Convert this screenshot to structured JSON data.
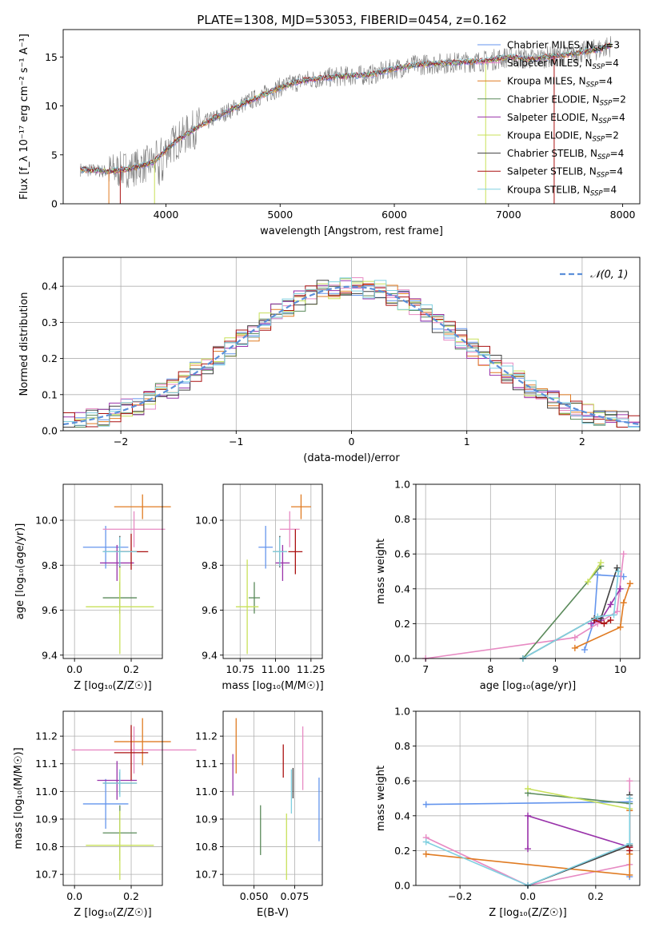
{
  "figure": {
    "title": "PLATE=1308, MJD=53053, FIBERID=0454, z=0.162"
  },
  "palette": {
    "chabrier_miles": "#6495ed",
    "salpeter_miles": "#e78ac3",
    "kroupa_miles": "#e07b22",
    "chabrier_elodie": "#5a8a5a",
    "salpeter_elodie": "#9933aa",
    "kroupa_elodie": "#c8e05a",
    "chabrier_stelib": "#404040",
    "salpeter_stelib": "#aa1111",
    "kroupa_stelib": "#80d0e0",
    "data": "#808080",
    "gaussian": "#5b8fd9"
  },
  "chart_data": [
    {
      "id": "spectrum",
      "type": "line",
      "xlabel": "wavelength [Angstrom, rest frame]",
      "ylabel": "Flux [f_λ 10⁻¹⁷ erg cm⁻² s⁻¹ A⁻¹]",
      "xlim": [
        3100,
        8150
      ],
      "ylim": [
        0,
        17.8
      ],
      "xticks": [
        4000,
        5000,
        6000,
        7000,
        8000
      ],
      "yticks": [
        0,
        5,
        10,
        15
      ],
      "grid": false,
      "legend_position": "top-right",
      "legend": [
        {
          "main": "Chabrier MILES, N",
          "sub": "SSP",
          "tail": "=3"
        },
        {
          "main": "Salpeter MILES, N",
          "sub": "SSP",
          "tail": "=4"
        },
        {
          "main": "Kroupa MILES, N",
          "sub": "SSP",
          "tail": "=4"
        },
        {
          "main": "Chabrier ELODIE, N",
          "sub": "SSP",
          "tail": "=2"
        },
        {
          "main": "Salpeter ELODIE, N",
          "sub": "SSP",
          "tail": "=4"
        },
        {
          "main": "Kroupa ELODIE, N",
          "sub": "SSP",
          "tail": "=2"
        },
        {
          "main": "Chabrier STELIB, N",
          "sub": "SSP",
          "tail": "=4"
        },
        {
          "main": "Salpeter STELIB, N",
          "sub": "SSP",
          "tail": "=4"
        },
        {
          "main": "Kroupa STELIB, N",
          "sub": "SSP",
          "tail": "=4"
        }
      ],
      "continuum": {
        "x": [
          3250,
          3500,
          3700,
          3900,
          4000,
          4100,
          4300,
          4600,
          5000,
          5200,
          5500,
          5800,
          6000,
          6200,
          6500,
          6800,
          7000,
          7200,
          7500,
          7800,
          7900
        ],
        "y": [
          3.5,
          3.3,
          3.6,
          4.3,
          5.5,
          6.5,
          8.0,
          9.8,
          11.9,
          12.6,
          13.0,
          13.2,
          13.8,
          14.2,
          14.4,
          14.6,
          15.0,
          14.8,
          15.2,
          15.8,
          16.2
        ]
      }
    },
    {
      "id": "residuals",
      "type": "histogram",
      "xlabel": "(data-model)/error",
      "ylabel": "Normed distribution",
      "xlim": [
        -2.5,
        2.5
      ],
      "ylim": [
        0,
        0.48
      ],
      "xticks": [
        -2,
        -1,
        0,
        1,
        2
      ],
      "xtick_labels": [
        "−2",
        "−1",
        "0",
        "1",
        "2"
      ],
      "yticks": [
        0.0,
        0.1,
        0.2,
        0.3,
        0.4
      ],
      "grid": true,
      "legend_position": "top-right",
      "legend": [
        "𝒩(0, 1)"
      ],
      "bin_width": 0.1
    },
    {
      "id": "age-vs-Z",
      "type": "errorbar",
      "xlabel": "Z [log₁₀(Z/Z☉)]",
      "ylabel": "age  [log₁₀(age/yr)]",
      "xlim": [
        -0.04,
        0.31
      ],
      "ylim": [
        9.385,
        10.16
      ],
      "xticks": [
        0.0,
        0.2
      ],
      "yticks": [
        9.4,
        9.6,
        9.8,
        10.0
      ],
      "grid": true,
      "points": [
        {
          "model": "chabrier_miles",
          "x": 0.11,
          "xerr": 0.08,
          "y": 9.88,
          "yerr": 0.095
        },
        {
          "model": "salpeter_miles",
          "x": 0.21,
          "xerr": 0.11,
          "y": 9.96,
          "yerr": 0.08
        },
        {
          "model": "kroupa_miles",
          "x": 0.24,
          "xerr": 0.1,
          "y": 10.06,
          "yerr": 0.055
        },
        {
          "model": "chabrier_elodie",
          "x": 0.16,
          "xerr": 0.06,
          "y": 9.655,
          "yerr": 0.07
        },
        {
          "model": "salpeter_elodie",
          "x": 0.15,
          "xerr": 0.06,
          "y": 9.81,
          "yerr": 0.08
        },
        {
          "model": "kroupa_elodie",
          "x": 0.16,
          "xerr": 0.12,
          "y": 9.615,
          "yerr": 0.21
        },
        {
          "model": "chabrier_stelib",
          "x": 0.16,
          "xerr": 0.06,
          "y": 9.86,
          "yerr": 0.07
        },
        {
          "model": "salpeter_stelib",
          "x": 0.2,
          "xerr": 0.06,
          "y": 9.86,
          "yerr": 0.08
        },
        {
          "model": "kroupa_stelib",
          "x": 0.16,
          "xerr": 0.06,
          "y": 9.86,
          "yerr": 0.065
        }
      ]
    },
    {
      "id": "age-vs-mass",
      "type": "errorbar",
      "xlabel": "mass [log₁₀(M/M☉)]",
      "ylabel": "",
      "xlim": [
        10.63,
        11.33
      ],
      "ylim": [
        9.385,
        10.16
      ],
      "xticks": [
        10.75,
        11.0,
        11.25
      ],
      "yticks": [
        9.4,
        9.6,
        9.8,
        10.0
      ],
      "grid": true,
      "points": [
        {
          "model": "chabrier_miles",
          "x": 10.93,
          "xerr": 0.05,
          "y": 9.88,
          "yerr": 0.095
        },
        {
          "model": "salpeter_miles",
          "x": 11.1,
          "xerr": 0.07,
          "y": 9.96,
          "yerr": 0.08
        },
        {
          "model": "kroupa_miles",
          "x": 11.18,
          "xerr": 0.07,
          "y": 10.06,
          "yerr": 0.055
        },
        {
          "model": "chabrier_elodie",
          "x": 10.85,
          "xerr": 0.04,
          "y": 9.655,
          "yerr": 0.07
        },
        {
          "model": "salpeter_elodie",
          "x": 11.05,
          "xerr": 0.05,
          "y": 9.81,
          "yerr": 0.08
        },
        {
          "model": "kroupa_elodie",
          "x": 10.8,
          "xerr": 0.08,
          "y": 9.615,
          "yerr": 0.21
        },
        {
          "model": "chabrier_stelib",
          "x": 11.03,
          "xerr": 0.05,
          "y": 9.86,
          "yerr": 0.07
        },
        {
          "model": "salpeter_stelib",
          "x": 11.14,
          "xerr": 0.05,
          "y": 9.86,
          "yerr": 0.1
        },
        {
          "model": "kroupa_stelib",
          "x": 11.03,
          "xerr": 0.05,
          "y": 9.86,
          "yerr": 0.065
        }
      ]
    },
    {
      "id": "mass-weight-vs-age",
      "type": "line",
      "xlabel": "age  [log₁₀(age/yr)]",
      "ylabel": "mass weight",
      "xlim": [
        6.85,
        10.3
      ],
      "ylim": [
        0,
        1
      ],
      "xticks": [
        7,
        8,
        9,
        10
      ],
      "yticks": [
        0.0,
        0.2,
        0.4,
        0.6,
        0.8,
        1.0
      ],
      "grid": true,
      "series": [
        {
          "model": "chabrier_miles",
          "x": [
            9.45,
            9.6,
            9.65,
            10.05
          ],
          "y": [
            0.05,
            0.22,
            0.48,
            0.47
          ]
        },
        {
          "model": "salpeter_miles",
          "x": [
            7.0,
            9.3,
            9.65,
            9.95,
            10.05
          ],
          "y": [
            0.0,
            0.12,
            0.2,
            0.27,
            0.6
          ]
        },
        {
          "model": "kroupa_miles",
          "x": [
            9.3,
            10.0,
            10.05,
            10.15
          ],
          "y": [
            0.06,
            0.18,
            0.32,
            0.43
          ]
        },
        {
          "model": "chabrier_elodie",
          "x": [
            8.5,
            9.7
          ],
          "y": [
            0.0,
            0.53
          ]
        },
        {
          "model": "salpeter_elodie",
          "x": [
            9.55,
            9.7,
            9.85,
            10.0
          ],
          "y": [
            0.2,
            0.22,
            0.31,
            0.4
          ]
        },
        {
          "model": "kroupa_elodie",
          "x": [
            9.5,
            9.7
          ],
          "y": [
            0.44,
            0.55
          ]
        },
        {
          "model": "chabrier_stelib",
          "x": [
            8.5,
            9.6,
            9.7,
            9.95
          ],
          "y": [
            0.0,
            0.23,
            0.23,
            0.52
          ]
        },
        {
          "model": "salpeter_stelib",
          "x": [
            9.6,
            9.75,
            9.85
          ],
          "y": [
            0.22,
            0.2,
            0.22
          ]
        },
        {
          "model": "kroupa_stelib",
          "x": [
            8.5,
            9.65,
            9.9,
            9.97
          ],
          "y": [
            0.0,
            0.24,
            0.25,
            0.5
          ]
        }
      ]
    },
    {
      "id": "mass-vs-Z",
      "type": "errorbar",
      "xlabel": "Z [log₁₀(Z/Z☉)]",
      "ylabel": "mass [log₁₀(M/M☉)]",
      "xlim": [
        -0.04,
        0.31
      ],
      "ylim": [
        10.66,
        11.29
      ],
      "xticks": [
        0.0,
        0.2
      ],
      "yticks": [
        10.7,
        10.8,
        10.9,
        11.0,
        11.1,
        11.2
      ],
      "grid": true,
      "points": [
        {
          "model": "chabrier_miles",
          "x": 0.11,
          "xerr": 0.08,
          "y": 10.955,
          "yerr": 0.09
        },
        {
          "model": "salpeter_miles",
          "x": 0.21,
          "xerr": 0.22,
          "y": 11.15,
          "yerr": 0.085
        },
        {
          "model": "kroupa_miles",
          "x": 0.24,
          "xerr": 0.1,
          "y": 11.18,
          "yerr": 0.085
        },
        {
          "model": "chabrier_elodie",
          "x": 0.16,
          "xerr": 0.06,
          "y": 10.85,
          "yerr": 0.1
        },
        {
          "model": "salpeter_elodie",
          "x": 0.15,
          "xerr": 0.07,
          "y": 11.04,
          "yerr": 0.07
        },
        {
          "model": "kroupa_elodie",
          "x": 0.16,
          "xerr": 0.12,
          "y": 10.805,
          "yerr": 0.125
        },
        {
          "model": "chabrier_stelib",
          "x": 0.16,
          "xerr": 0.06,
          "y": 11.03,
          "yerr": 0.04
        },
        {
          "model": "salpeter_stelib",
          "x": 0.2,
          "xerr": 0.06,
          "y": 11.14,
          "yerr": 0.1
        },
        {
          "model": "kroupa_stelib",
          "x": 0.16,
          "xerr": 0.06,
          "y": 11.03,
          "yerr": 0.05
        }
      ]
    },
    {
      "id": "mass-vs-ebv",
      "type": "errorbar",
      "xlabel": "E(B-V)",
      "ylabel": "",
      "xlim": [
        0.031,
        0.092
      ],
      "ylim": [
        10.66,
        11.29
      ],
      "xticks": [
        0.05,
        0.075
      ],
      "yticks": [
        10.7,
        10.8,
        10.9,
        11.0,
        11.1,
        11.2
      ],
      "grid": true,
      "points": [
        {
          "model": "chabrier_miles",
          "x": 0.09,
          "y": 10.935,
          "yerr": 0.115
        },
        {
          "model": "salpeter_miles",
          "x": 0.08,
          "y": 11.12,
          "yerr": 0.115
        },
        {
          "model": "kroupa_miles",
          "x": 0.039,
          "y": 11.165,
          "yerr": 0.1
        },
        {
          "model": "chabrier_elodie",
          "x": 0.054,
          "y": 10.86,
          "yerr": 0.09
        },
        {
          "model": "salpeter_elodie",
          "x": 0.037,
          "y": 11.06,
          "yerr": 0.075
        },
        {
          "model": "kroupa_elodie",
          "x": 0.07,
          "y": 10.8,
          "yerr": 0.12
        },
        {
          "model": "chabrier_stelib",
          "x": 0.074,
          "y": 11.03,
          "yerr": 0.055
        },
        {
          "model": "salpeter_stelib",
          "x": 0.068,
          "y": 11.11,
          "yerr": 0.06
        },
        {
          "model": "kroupa_stelib",
          "x": 0.073,
          "y": 11.0,
          "yerr": 0.08
        }
      ]
    },
    {
      "id": "mass-weight-vs-Z",
      "type": "line",
      "xlabel": "Z [log₁₀(Z/Z☉)]",
      "ylabel": "mass weight",
      "xlim": [
        -0.33,
        0.33
      ],
      "ylim": [
        0,
        1
      ],
      "xticks": [
        -0.2,
        0.0,
        0.2
      ],
      "xtick_labels": [
        "−0.2",
        "0.0",
        "0.2"
      ],
      "yticks": [
        0.0,
        0.2,
        0.4,
        0.6,
        0.8,
        1.0
      ],
      "grid": true,
      "series": [
        {
          "model": "chabrier_miles",
          "x": [
            -0.3,
            0.3,
            0.3
          ],
          "y": [
            0.465,
            0.48,
            0.05
          ]
        },
        {
          "model": "salpeter_miles",
          "x": [
            -0.3,
            0.0,
            0.3,
            0.3
          ],
          "y": [
            0.275,
            0.0,
            0.12,
            0.6
          ]
        },
        {
          "model": "kroupa_miles",
          "x": [
            -0.3,
            0.3,
            0.3,
            0.3
          ],
          "y": [
            0.18,
            0.06,
            0.18,
            0.43
          ]
        },
        {
          "model": "chabrier_elodie",
          "x": [
            0.0,
            0.3
          ],
          "y": [
            0.53,
            0.47
          ]
        },
        {
          "model": "salpeter_elodie",
          "x": [
            0.0,
            0.0,
            0.3,
            0.3
          ],
          "y": [
            0.21,
            0.4,
            0.22,
            0.22
          ]
        },
        {
          "model": "kroupa_elodie",
          "x": [
            0.0,
            0.3
          ],
          "y": [
            0.555,
            0.44
          ]
        },
        {
          "model": "chabrier_stelib",
          "x": [
            0.0,
            0.3,
            0.3
          ],
          "y": [
            0.0,
            0.23,
            0.52
          ]
        },
        {
          "model": "salpeter_stelib",
          "x": [
            0.3,
            0.3
          ],
          "y": [
            0.2,
            0.22
          ]
        },
        {
          "model": "kroupa_stelib",
          "x": [
            -0.3,
            0.0,
            0.3,
            0.3
          ],
          "y": [
            0.25,
            0.0,
            0.24,
            0.5
          ]
        }
      ]
    }
  ]
}
